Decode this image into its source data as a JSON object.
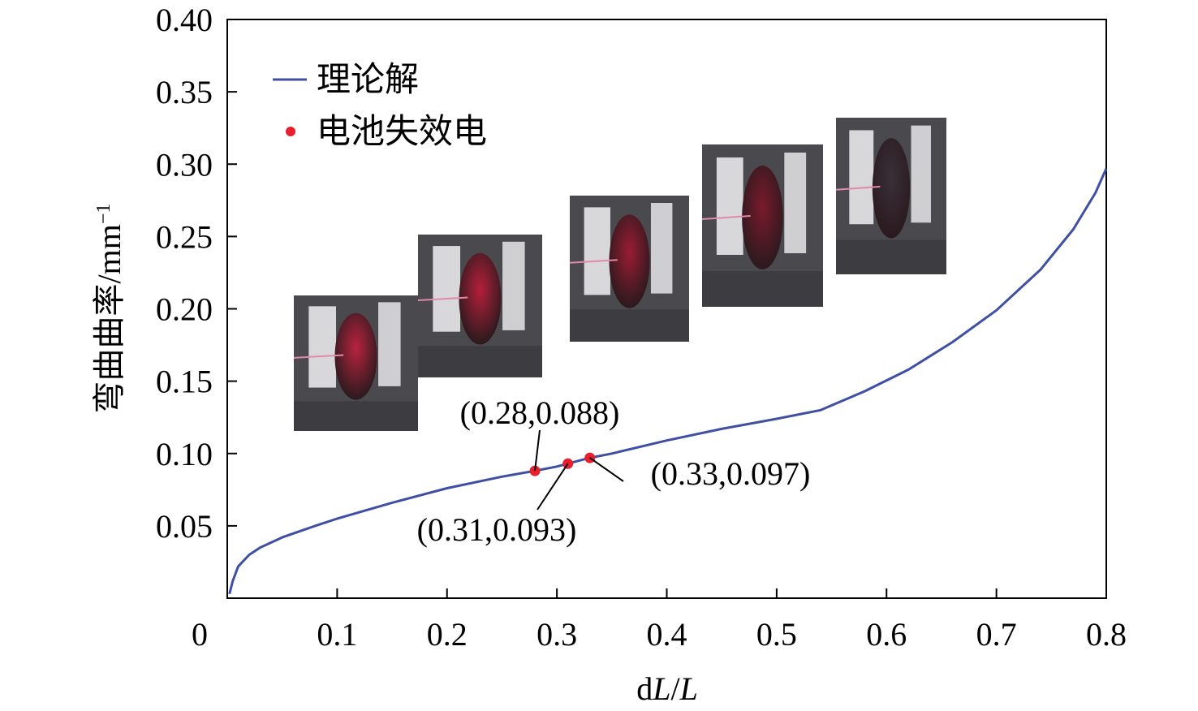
{
  "chart_data": {
    "type": "line",
    "xlabel_parts": [
      "d",
      "L",
      "/",
      "L"
    ],
    "ylabel": "弯曲曲率/mm",
    "ylabel_sup": "−1",
    "xlim": [
      0,
      0.8
    ],
    "ylim": [
      0,
      0.4
    ],
    "xticks": [
      0,
      0.1,
      0.2,
      0.3,
      0.4,
      0.5,
      0.6,
      0.7,
      0.8
    ],
    "xtick_labels": [
      "0",
      "0.1",
      "0.2",
      "0.3",
      "0.4",
      "0.5",
      "0.6",
      "0.7",
      "0.8"
    ],
    "yticks": [
      0.05,
      0.1,
      0.15,
      0.2,
      0.25,
      0.3,
      0.35,
      0.4
    ],
    "ytick_labels": [
      "0.05",
      "0.10",
      "0.15",
      "0.20",
      "0.25",
      "0.30",
      "0.35",
      "0.40"
    ],
    "legend_position": "top-left",
    "series": [
      {
        "name": "理论解",
        "kind": "line",
        "color": "#3f4fa3",
        "x": [
          0.002,
          0.005,
          0.01,
          0.02,
          0.03,
          0.05,
          0.08,
          0.1,
          0.15,
          0.2,
          0.25,
          0.28,
          0.3,
          0.31,
          0.33,
          0.35,
          0.4,
          0.45,
          0.5,
          0.54,
          0.58,
          0.62,
          0.66,
          0.7,
          0.74,
          0.77,
          0.79,
          0.8
        ],
        "y": [
          0.003,
          0.012,
          0.022,
          0.03,
          0.035,
          0.042,
          0.05,
          0.055,
          0.066,
          0.076,
          0.084,
          0.088,
          0.091,
          0.093,
          0.097,
          0.1,
          0.109,
          0.117,
          0.124,
          0.13,
          0.143,
          0.158,
          0.177,
          0.199,
          0.227,
          0.255,
          0.28,
          0.297
        ]
      },
      {
        "name": "电池失效电",
        "kind": "points",
        "color": "#e8202e",
        "x": [
          0.28,
          0.31,
          0.33
        ],
        "y": [
          0.088,
          0.093,
          0.097
        ]
      }
    ],
    "annotations": [
      {
        "text": "(0.28,0.088)",
        "point_index": 0
      },
      {
        "text": "(0.31,0.093)",
        "point_index": 1
      },
      {
        "text": "(0.33,0.097)",
        "point_index": 2
      }
    ]
  },
  "inset_photos": [
    {
      "name": "battery-photo-1",
      "tone": "#b8233f"
    },
    {
      "name": "battery-photo-2",
      "tone": "#b51f3a"
    },
    {
      "name": "battery-photo-3",
      "tone": "#9a1c33"
    },
    {
      "name": "battery-photo-4",
      "tone": "#7a1a2c"
    },
    {
      "name": "battery-photo-5",
      "tone": "#3a3038"
    }
  ]
}
